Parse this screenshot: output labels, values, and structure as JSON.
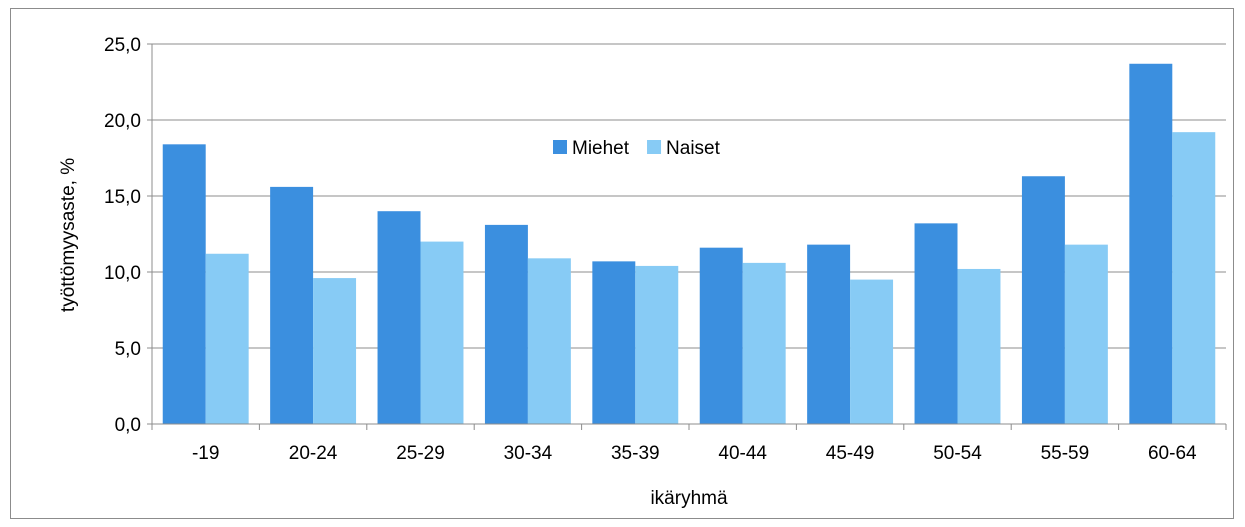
{
  "chart_data": {
    "type": "bar",
    "categories": [
      "-19",
      "20-24",
      "25-29",
      "30-34",
      "35-39",
      "40-44",
      "45-49",
      "50-54",
      "55-59",
      "60-64"
    ],
    "series": [
      {
        "name": "Miehet",
        "color": "#3b8fdf",
        "values": [
          18.4,
          15.6,
          14.0,
          13.1,
          10.7,
          11.6,
          11.8,
          13.2,
          16.3,
          23.7
        ]
      },
      {
        "name": "Naiset",
        "color": "#87cbf5",
        "values": [
          11.2,
          9.6,
          12.0,
          10.9,
          10.4,
          10.6,
          9.5,
          10.2,
          11.8,
          19.2
        ]
      }
    ],
    "xlabel": "ikäryhmä",
    "ylabel": "työttömyysaste, %",
    "ylim": [
      0,
      25
    ],
    "yticks": [
      "0,0",
      "5,0",
      "10,0",
      "15,0",
      "20,0",
      "25,0"
    ],
    "grid": true,
    "legend_position": "top-center"
  }
}
